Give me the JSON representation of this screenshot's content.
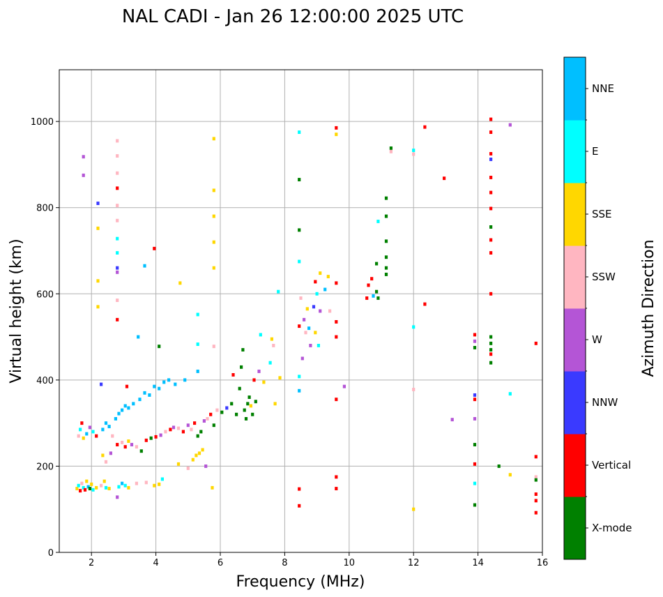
{
  "chart_data": {
    "type": "scatter",
    "title": "NAL CADI - Jan 26 12:00:00 2025 UTC",
    "xlabel": "Frequency (MHz)",
    "ylabel": "Virtual height (km)",
    "xlim": [
      1,
      16
    ],
    "ylim": [
      0,
      1120
    ],
    "xticks": [
      2,
      4,
      6,
      8,
      10,
      12,
      14,
      16
    ],
    "yticks": [
      0,
      200,
      400,
      600,
      800,
      1000
    ],
    "grid": true,
    "colorbar": {
      "label": "Azimuth Direction",
      "categories": [
        {
          "name": "X-mode",
          "color": "#008000"
        },
        {
          "name": "Vertical",
          "color": "#ff0000"
        },
        {
          "name": "NNW",
          "color": "#3a3aff"
        },
        {
          "name": "W",
          "color": "#b455d6"
        },
        {
          "name": "SSW",
          "color": "#ffb6c1"
        },
        {
          "name": "SSE",
          "color": "#ffd700"
        },
        {
          "name": "E",
          "color": "#00ffff"
        },
        {
          "name": "NNE",
          "color": "#00bfff"
        }
      ]
    },
    "points": [
      {
        "x": 1.55,
        "y": 148,
        "c": "SSE"
      },
      {
        "x": 1.6,
        "y": 155,
        "c": "E"
      },
      {
        "x": 1.65,
        "y": 143,
        "c": "Vertical"
      },
      {
        "x": 1.7,
        "y": 160,
        "c": "SSW"
      },
      {
        "x": 1.75,
        "y": 150,
        "c": "E"
      },
      {
        "x": 1.8,
        "y": 145,
        "c": "Vertical"
      },
      {
        "x": 1.85,
        "y": 165,
        "c": "SSE"
      },
      {
        "x": 1.9,
        "y": 152,
        "c": "NNE"
      },
      {
        "x": 1.95,
        "y": 148,
        "c": "X-mode"
      },
      {
        "x": 2.0,
        "y": 158,
        "c": "SSE"
      },
      {
        "x": 2.05,
        "y": 145,
        "c": "E"
      },
      {
        "x": 2.15,
        "y": 150,
        "c": "SSE"
      },
      {
        "x": 2.3,
        "y": 155,
        "c": "SSW"
      },
      {
        "x": 2.4,
        "y": 165,
        "c": "SSE"
      },
      {
        "x": 2.45,
        "y": 150,
        "c": "E"
      },
      {
        "x": 2.55,
        "y": 148,
        "c": "SSE"
      },
      {
        "x": 2.85,
        "y": 152,
        "c": "E"
      },
      {
        "x": 2.95,
        "y": 160,
        "c": "NNE"
      },
      {
        "x": 3.05,
        "y": 155,
        "c": "E"
      },
      {
        "x": 3.15,
        "y": 150,
        "c": "SSE"
      },
      {
        "x": 3.4,
        "y": 160,
        "c": "SSW"
      },
      {
        "x": 3.7,
        "y": 162,
        "c": "SSW"
      },
      {
        "x": 3.95,
        "y": 155,
        "c": "SSE"
      },
      {
        "x": 4.1,
        "y": 158,
        "c": "SSE"
      },
      {
        "x": 4.2,
        "y": 170,
        "c": "E"
      },
      {
        "x": 4.7,
        "y": 205,
        "c": "SSE"
      },
      {
        "x": 5.0,
        "y": 195,
        "c": "SSW"
      },
      {
        "x": 5.15,
        "y": 215,
        "c": "SSE"
      },
      {
        "x": 5.25,
        "y": 225,
        "c": "SSE"
      },
      {
        "x": 5.35,
        "y": 230,
        "c": "SSE"
      },
      {
        "x": 5.45,
        "y": 238,
        "c": "SSE"
      },
      {
        "x": 5.55,
        "y": 200,
        "c": "W"
      },
      {
        "x": 5.75,
        "y": 150,
        "c": "SSE"
      },
      {
        "x": 1.6,
        "y": 270,
        "c": "SSW"
      },
      {
        "x": 1.65,
        "y": 285,
        "c": "E"
      },
      {
        "x": 1.7,
        "y": 300,
        "c": "Vertical"
      },
      {
        "x": 1.75,
        "y": 265,
        "c": "SSE"
      },
      {
        "x": 1.85,
        "y": 275,
        "c": "NNE"
      },
      {
        "x": 1.95,
        "y": 290,
        "c": "W"
      },
      {
        "x": 2.05,
        "y": 280,
        "c": "E"
      },
      {
        "x": 2.15,
        "y": 270,
        "c": "Vertical"
      },
      {
        "x": 2.35,
        "y": 285,
        "c": "NNE"
      },
      {
        "x": 2.45,
        "y": 300,
        "c": "NNE"
      },
      {
        "x": 2.55,
        "y": 292,
        "c": "NNE"
      },
      {
        "x": 2.65,
        "y": 270,
        "c": "SSW"
      },
      {
        "x": 2.75,
        "y": 310,
        "c": "NNE"
      },
      {
        "x": 2.85,
        "y": 322,
        "c": "NNE"
      },
      {
        "x": 2.95,
        "y": 330,
        "c": "NNE"
      },
      {
        "x": 3.05,
        "y": 340,
        "c": "NNE"
      },
      {
        "x": 3.15,
        "y": 335,
        "c": "NNE"
      },
      {
        "x": 3.3,
        "y": 345,
        "c": "NNE"
      },
      {
        "x": 3.5,
        "y": 355,
        "c": "NNE"
      },
      {
        "x": 3.65,
        "y": 370,
        "c": "NNE"
      },
      {
        "x": 3.8,
        "y": 365,
        "c": "NNE"
      },
      {
        "x": 3.95,
        "y": 385,
        "c": "NNE"
      },
      {
        "x": 4.1,
        "y": 380,
        "c": "NNE"
      },
      {
        "x": 4.25,
        "y": 395,
        "c": "NNE"
      },
      {
        "x": 4.4,
        "y": 400,
        "c": "NNE"
      },
      {
        "x": 4.6,
        "y": 390,
        "c": "NNE"
      },
      {
        "x": 4.9,
        "y": 400,
        "c": "NNE"
      },
      {
        "x": 5.3,
        "y": 420,
        "c": "NNE"
      },
      {
        "x": 2.3,
        "y": 390,
        "c": "NNW"
      },
      {
        "x": 3.1,
        "y": 385,
        "c": "Vertical"
      },
      {
        "x": 2.35,
        "y": 225,
        "c": "SSE"
      },
      {
        "x": 2.45,
        "y": 210,
        "c": "SSW"
      },
      {
        "x": 2.6,
        "y": 230,
        "c": "W"
      },
      {
        "x": 2.8,
        "y": 250,
        "c": "Vertical"
      },
      {
        "x": 2.95,
        "y": 255,
        "c": "SSW"
      },
      {
        "x": 3.05,
        "y": 245,
        "c": "Vertical"
      },
      {
        "x": 3.15,
        "y": 258,
        "c": "SSE"
      },
      {
        "x": 3.25,
        "y": 250,
        "c": "W"
      },
      {
        "x": 3.4,
        "y": 245,
        "c": "SSW"
      },
      {
        "x": 3.55,
        "y": 235,
        "c": "X-mode"
      },
      {
        "x": 3.7,
        "y": 260,
        "c": "Vertical"
      },
      {
        "x": 3.85,
        "y": 265,
        "c": "X-mode"
      },
      {
        "x": 4.0,
        "y": 268,
        "c": "Vertical"
      },
      {
        "x": 4.15,
        "y": 272,
        "c": "W"
      },
      {
        "x": 4.3,
        "y": 280,
        "c": "SSW"
      },
      {
        "x": 4.45,
        "y": 285,
        "c": "Vertical"
      },
      {
        "x": 4.55,
        "y": 290,
        "c": "W"
      },
      {
        "x": 4.7,
        "y": 288,
        "c": "SSW"
      },
      {
        "x": 4.85,
        "y": 280,
        "c": "Vertical"
      },
      {
        "x": 5.0,
        "y": 295,
        "c": "W"
      },
      {
        "x": 5.1,
        "y": 285,
        "c": "SSW"
      },
      {
        "x": 5.2,
        "y": 300,
        "c": "Vertical"
      },
      {
        "x": 5.3,
        "y": 270,
        "c": "X-mode"
      },
      {
        "x": 5.4,
        "y": 280,
        "c": "X-mode"
      },
      {
        "x": 5.5,
        "y": 305,
        "c": "W"
      },
      {
        "x": 5.6,
        "y": 310,
        "c": "SSW"
      },
      {
        "x": 5.7,
        "y": 320,
        "c": "Vertical"
      },
      {
        "x": 5.8,
        "y": 295,
        "c": "X-mode"
      },
      {
        "x": 5.9,
        "y": 330,
        "c": "SSW"
      },
      {
        "x": 6.05,
        "y": 325,
        "c": "X-mode"
      },
      {
        "x": 6.2,
        "y": 335,
        "c": "NNW"
      },
      {
        "x": 6.35,
        "y": 345,
        "c": "X-mode"
      },
      {
        "x": 6.5,
        "y": 320,
        "c": "X-mode"
      },
      {
        "x": 6.6,
        "y": 380,
        "c": "X-mode"
      },
      {
        "x": 6.65,
        "y": 430,
        "c": "X-mode"
      },
      {
        "x": 6.7,
        "y": 470,
        "c": "X-mode"
      },
      {
        "x": 6.75,
        "y": 330,
        "c": "X-mode"
      },
      {
        "x": 6.8,
        "y": 310,
        "c": "X-mode"
      },
      {
        "x": 6.85,
        "y": 345,
        "c": "X-mode"
      },
      {
        "x": 6.9,
        "y": 360,
        "c": "X-mode"
      },
      {
        "x": 6.95,
        "y": 340,
        "c": "SSE"
      },
      {
        "x": 7.0,
        "y": 320,
        "c": "X-mode"
      },
      {
        "x": 7.05,
        "y": 400,
        "c": "Vertical"
      },
      {
        "x": 7.1,
        "y": 350,
        "c": "X-mode"
      },
      {
        "x": 7.2,
        "y": 420,
        "c": "W"
      },
      {
        "x": 7.35,
        "y": 395,
        "c": "SSE"
      },
      {
        "x": 7.55,
        "y": 440,
        "c": "E"
      },
      {
        "x": 7.65,
        "y": 480,
        "c": "SSW"
      },
      {
        "x": 7.7,
        "y": 345,
        "c": "SSE"
      },
      {
        "x": 7.85,
        "y": 405,
        "c": "SSE"
      },
      {
        "x": 6.4,
        "y": 412,
        "c": "Vertical"
      },
      {
        "x": 7.6,
        "y": 495,
        "c": "SSE"
      },
      {
        "x": 7.25,
        "y": 505,
        "c": "E"
      },
      {
        "x": 8.45,
        "y": 525,
        "c": "Vertical"
      },
      {
        "x": 8.5,
        "y": 590,
        "c": "SSW"
      },
      {
        "x": 8.55,
        "y": 450,
        "c": "W"
      },
      {
        "x": 8.6,
        "y": 540,
        "c": "W"
      },
      {
        "x": 8.65,
        "y": 510,
        "c": "SSW"
      },
      {
        "x": 8.7,
        "y": 565,
        "c": "SSE"
      },
      {
        "x": 8.75,
        "y": 520,
        "c": "NNE"
      },
      {
        "x": 8.8,
        "y": 480,
        "c": "W"
      },
      {
        "x": 8.9,
        "y": 570,
        "c": "NNW"
      },
      {
        "x": 8.95,
        "y": 510,
        "c": "SSE"
      },
      {
        "x": 9.0,
        "y": 600,
        "c": "E"
      },
      {
        "x": 9.05,
        "y": 480,
        "c": "E"
      },
      {
        "x": 9.1,
        "y": 560,
        "c": "W"
      },
      {
        "x": 8.95,
        "y": 628,
        "c": "Vertical"
      },
      {
        "x": 9.1,
        "y": 648,
        "c": "SSE"
      },
      {
        "x": 9.25,
        "y": 610,
        "c": "NNE"
      },
      {
        "x": 9.35,
        "y": 640,
        "c": "SSE"
      },
      {
        "x": 9.4,
        "y": 560,
        "c": "SSW"
      },
      {
        "x": 9.6,
        "y": 625,
        "c": "Vertical"
      },
      {
        "x": 9.6,
        "y": 500,
        "c": "Vertical"
      },
      {
        "x": 9.6,
        "y": 535,
        "c": "Vertical"
      },
      {
        "x": 8.45,
        "y": 675,
        "c": "E"
      },
      {
        "x": 8.45,
        "y": 748,
        "c": "X-mode"
      },
      {
        "x": 8.45,
        "y": 865,
        "c": "X-mode"
      },
      {
        "x": 8.45,
        "y": 975,
        "c": "E"
      },
      {
        "x": 8.45,
        "y": 408,
        "c": "E"
      },
      {
        "x": 8.45,
        "y": 375,
        "c": "NNE"
      },
      {
        "x": 8.45,
        "y": 147,
        "c": "Vertical"
      },
      {
        "x": 8.45,
        "y": 108,
        "c": "Vertical"
      },
      {
        "x": 9.6,
        "y": 985,
        "c": "Vertical"
      },
      {
        "x": 9.6,
        "y": 970,
        "c": "SSE"
      },
      {
        "x": 9.6,
        "y": 355,
        "c": "Vertical"
      },
      {
        "x": 9.6,
        "y": 175,
        "c": "Vertical"
      },
      {
        "x": 9.6,
        "y": 148,
        "c": "Vertical"
      },
      {
        "x": 9.85,
        "y": 385,
        "c": "W"
      },
      {
        "x": 10.55,
        "y": 590,
        "c": "Vertical"
      },
      {
        "x": 10.6,
        "y": 620,
        "c": "Vertical"
      },
      {
        "x": 10.7,
        "y": 635,
        "c": "Vertical"
      },
      {
        "x": 10.75,
        "y": 595,
        "c": "NNE"
      },
      {
        "x": 10.85,
        "y": 605,
        "c": "X-mode"
      },
      {
        "x": 10.9,
        "y": 590,
        "c": "X-mode"
      },
      {
        "x": 10.85,
        "y": 670,
        "c": "X-mode"
      },
      {
        "x": 10.9,
        "y": 768,
        "c": "E"
      },
      {
        "x": 11.15,
        "y": 645,
        "c": "X-mode"
      },
      {
        "x": 11.15,
        "y": 660,
        "c": "X-mode"
      },
      {
        "x": 11.15,
        "y": 685,
        "c": "X-mode"
      },
      {
        "x": 11.15,
        "y": 722,
        "c": "X-mode"
      },
      {
        "x": 11.15,
        "y": 780,
        "c": "X-mode"
      },
      {
        "x": 11.15,
        "y": 822,
        "c": "X-mode"
      },
      {
        "x": 11.3,
        "y": 938,
        "c": "X-mode"
      },
      {
        "x": 11.3,
        "y": 930,
        "c": "SSW"
      },
      {
        "x": 12.0,
        "y": 933,
        "c": "E"
      },
      {
        "x": 12.0,
        "y": 924,
        "c": "SSW"
      },
      {
        "x": 12.35,
        "y": 987,
        "c": "Vertical"
      },
      {
        "x": 12.35,
        "y": 576,
        "c": "Vertical"
      },
      {
        "x": 12.0,
        "y": 523,
        "c": "E"
      },
      {
        "x": 12.0,
        "y": 378,
        "c": "SSW"
      },
      {
        "x": 12.0,
        "y": 100,
        "c": "SSE"
      },
      {
        "x": 12.95,
        "y": 868,
        "c": "Vertical"
      },
      {
        "x": 13.2,
        "y": 308,
        "c": "W"
      },
      {
        "x": 13.9,
        "y": 505,
        "c": "Vertical"
      },
      {
        "x": 13.9,
        "y": 490,
        "c": "W"
      },
      {
        "x": 13.9,
        "y": 475,
        "c": "X-mode"
      },
      {
        "x": 13.9,
        "y": 365,
        "c": "NNW"
      },
      {
        "x": 13.9,
        "y": 355,
        "c": "Vertical"
      },
      {
        "x": 13.9,
        "y": 310,
        "c": "W"
      },
      {
        "x": 13.9,
        "y": 250,
        "c": "X-mode"
      },
      {
        "x": 13.9,
        "y": 205,
        "c": "Vertical"
      },
      {
        "x": 13.9,
        "y": 160,
        "c": "E"
      },
      {
        "x": 13.9,
        "y": 110,
        "c": "X-mode"
      },
      {
        "x": 14.4,
        "y": 1005,
        "c": "Vertical"
      },
      {
        "x": 14.4,
        "y": 975,
        "c": "Vertical"
      },
      {
        "x": 14.4,
        "y": 925,
        "c": "Vertical"
      },
      {
        "x": 14.4,
        "y": 912,
        "c": "NNW"
      },
      {
        "x": 14.4,
        "y": 870,
        "c": "Vertical"
      },
      {
        "x": 14.4,
        "y": 835,
        "c": "Vertical"
      },
      {
        "x": 14.4,
        "y": 798,
        "c": "Vertical"
      },
      {
        "x": 14.4,
        "y": 755,
        "c": "X-mode"
      },
      {
        "x": 14.4,
        "y": 725,
        "c": "Vertical"
      },
      {
        "x": 14.4,
        "y": 695,
        "c": "Vertical"
      },
      {
        "x": 14.4,
        "y": 600,
        "c": "Vertical"
      },
      {
        "x": 14.4,
        "y": 500,
        "c": "X-mode"
      },
      {
        "x": 14.4,
        "y": 485,
        "c": "X-mode"
      },
      {
        "x": 14.4,
        "y": 470,
        "c": "X-mode"
      },
      {
        "x": 14.4,
        "y": 460,
        "c": "Vertical"
      },
      {
        "x": 14.4,
        "y": 440,
        "c": "X-mode"
      },
      {
        "x": 14.65,
        "y": 200,
        "c": "X-mode"
      },
      {
        "x": 15.0,
        "y": 992,
        "c": "W"
      },
      {
        "x": 15.0,
        "y": 368,
        "c": "E"
      },
      {
        "x": 15.0,
        "y": 180,
        "c": "SSE"
      },
      {
        "x": 15.8,
        "y": 485,
        "c": "Vertical"
      },
      {
        "x": 15.8,
        "y": 222,
        "c": "Vertical"
      },
      {
        "x": 15.8,
        "y": 175,
        "c": "SSW"
      },
      {
        "x": 15.8,
        "y": 168,
        "c": "X-mode"
      },
      {
        "x": 15.8,
        "y": 135,
        "c": "Vertical"
      },
      {
        "x": 15.8,
        "y": 120,
        "c": "Vertical"
      },
      {
        "x": 15.8,
        "y": 92,
        "c": "Vertical"
      },
      {
        "x": 1.75,
        "y": 918,
        "c": "W"
      },
      {
        "x": 1.75,
        "y": 875,
        "c": "W"
      },
      {
        "x": 2.2,
        "y": 810,
        "c": "NNW"
      },
      {
        "x": 2.2,
        "y": 752,
        "c": "SSE"
      },
      {
        "x": 2.2,
        "y": 630,
        "c": "SSE"
      },
      {
        "x": 2.2,
        "y": 570,
        "c": "SSE"
      },
      {
        "x": 2.8,
        "y": 955,
        "c": "SSW"
      },
      {
        "x": 2.8,
        "y": 920,
        "c": "SSW"
      },
      {
        "x": 2.8,
        "y": 880,
        "c": "SSW"
      },
      {
        "x": 2.8,
        "y": 845,
        "c": "Vertical"
      },
      {
        "x": 2.8,
        "y": 805,
        "c": "SSW"
      },
      {
        "x": 2.8,
        "y": 770,
        "c": "SSW"
      },
      {
        "x": 2.8,
        "y": 728,
        "c": "E"
      },
      {
        "x": 2.8,
        "y": 695,
        "c": "E"
      },
      {
        "x": 2.8,
        "y": 660,
        "c": "NNW"
      },
      {
        "x": 2.8,
        "y": 650,
        "c": "W"
      },
      {
        "x": 2.8,
        "y": 585,
        "c": "SSW"
      },
      {
        "x": 2.8,
        "y": 540,
        "c": "Vertical"
      },
      {
        "x": 3.65,
        "y": 665,
        "c": "NNE"
      },
      {
        "x": 3.95,
        "y": 705,
        "c": "Vertical"
      },
      {
        "x": 4.75,
        "y": 625,
        "c": "SSE"
      },
      {
        "x": 5.8,
        "y": 960,
        "c": "SSE"
      },
      {
        "x": 5.8,
        "y": 840,
        "c": "SSE"
      },
      {
        "x": 5.8,
        "y": 780,
        "c": "SSE"
      },
      {
        "x": 5.8,
        "y": 720,
        "c": "SSE"
      },
      {
        "x": 5.8,
        "y": 660,
        "c": "SSE"
      },
      {
        "x": 5.3,
        "y": 552,
        "c": "E"
      },
      {
        "x": 4.1,
        "y": 478,
        "c": "X-mode"
      },
      {
        "x": 3.45,
        "y": 500,
        "c": "NNE"
      },
      {
        "x": 7.8,
        "y": 605,
        "c": "E"
      },
      {
        "x": 5.8,
        "y": 478,
        "c": "SSW"
      },
      {
        "x": 5.3,
        "y": 483,
        "c": "E"
      },
      {
        "x": 2.8,
        "y": 128,
        "c": "W"
      }
    ]
  }
}
